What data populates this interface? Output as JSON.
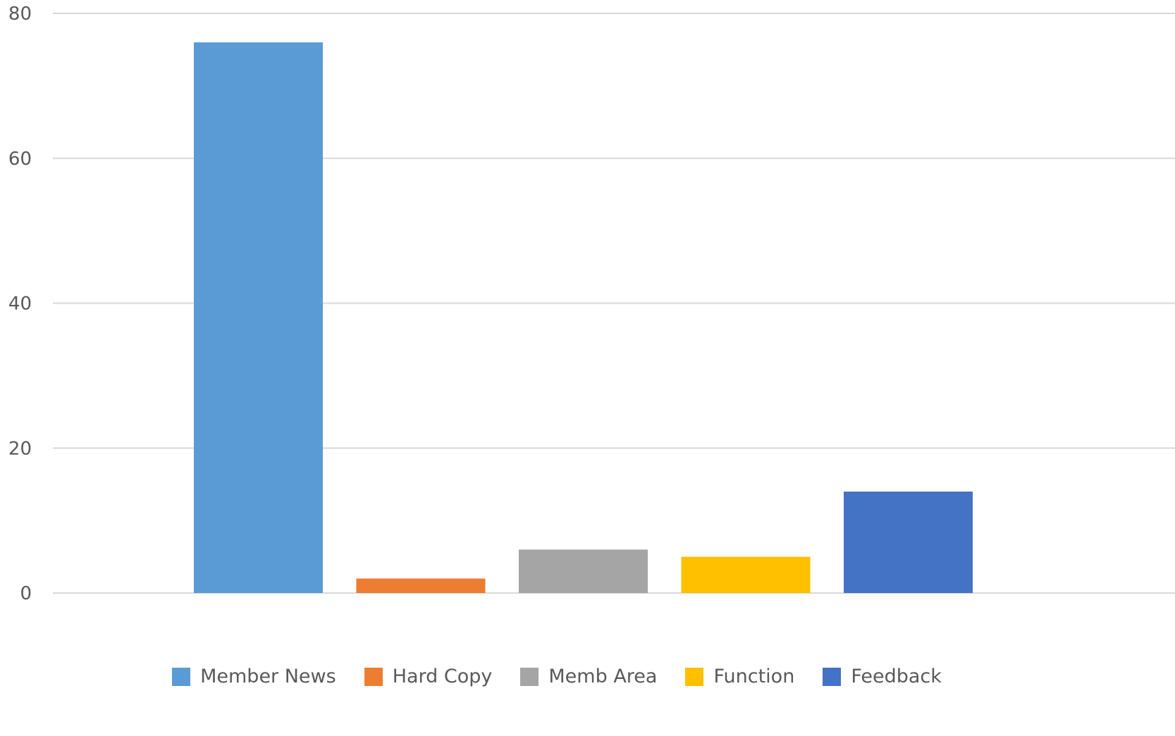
{
  "chart_data": {
    "type": "bar",
    "title": "",
    "xlabel": "",
    "ylabel": "",
    "ylim": [
      0,
      80
    ],
    "yticks": [
      0,
      20,
      40,
      60,
      80
    ],
    "grid": true,
    "legend_position": "bottom",
    "series": [
      {
        "name": "Member News",
        "value": 76,
        "color": "#5B9BD5"
      },
      {
        "name": "Hard Copy",
        "value": 2,
        "color": "#ED7D31"
      },
      {
        "name": "Memb Area",
        "value": 6,
        "color": "#A5A5A5"
      },
      {
        "name": "Function",
        "value": 5,
        "color": "#FFC000"
      },
      {
        "name": "Feedback",
        "value": 14,
        "color": "#4472C4"
      }
    ]
  }
}
